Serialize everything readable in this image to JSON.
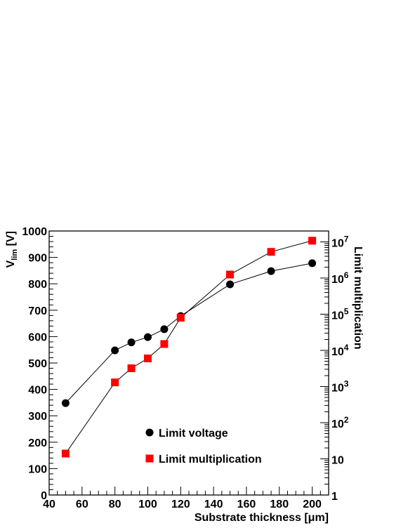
{
  "chart_data": {
    "type": "line",
    "x_axis": {
      "label": "Substrate thickness [μm]",
      "range": [
        40,
        210
      ],
      "major_ticks": [
        40,
        60,
        80,
        100,
        120,
        140,
        160,
        180,
        200
      ],
      "minor_step": 5
    },
    "y_axis_left": {
      "label_main": "V",
      "label_sub": "lim",
      "label_unit": " [V]",
      "range": [
        0,
        1000
      ],
      "major_ticks": [
        0,
        100,
        200,
        300,
        400,
        500,
        600,
        700,
        800,
        900,
        1000
      ],
      "minor_step": 20
    },
    "y_axis_right": {
      "label": "Limit multiplication",
      "scale": "log",
      "range": [
        1,
        20000000
      ],
      "ticks": [
        {
          "value": 1,
          "base": "1",
          "exp": ""
        },
        {
          "value": 10,
          "base": "10",
          "exp": ""
        },
        {
          "value": 100,
          "base": "10",
          "exp": "2"
        },
        {
          "value": 1000,
          "base": "10",
          "exp": "3"
        },
        {
          "value": 10000,
          "base": "10",
          "exp": "4"
        },
        {
          "value": 100000,
          "base": "10",
          "exp": "5"
        },
        {
          "value": 1000000,
          "base": "10",
          "exp": "6"
        },
        {
          "value": 10000000,
          "base": "10",
          "exp": "7"
        }
      ]
    },
    "series": [
      {
        "name": "Limit voltage",
        "axis": "left",
        "marker": "circle",
        "color": "#000000",
        "x": [
          50,
          80,
          90,
          100,
          110,
          120,
          150,
          175,
          200
        ],
        "y": [
          348,
          548,
          578,
          598,
          628,
          678,
          798,
          848,
          878
        ]
      },
      {
        "name": "Limit multiplication",
        "axis": "right",
        "marker": "square",
        "color": "#ff0000",
        "x": [
          50,
          80,
          90,
          100,
          110,
          120,
          150,
          175,
          200
        ],
        "y": [
          14,
          1300,
          3200,
          6000,
          15000,
          80000,
          1250000,
          5300000,
          10800000
        ]
      }
    ],
    "legend_position": "bottom-center",
    "grid": false
  }
}
